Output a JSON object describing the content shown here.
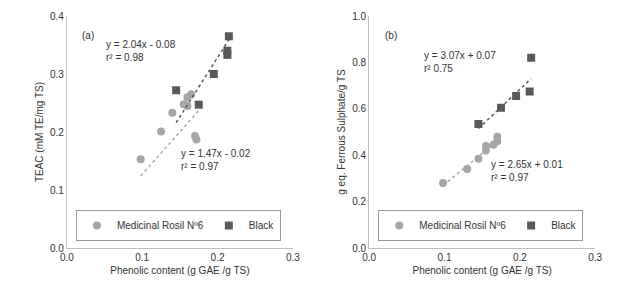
{
  "chart_data": [
    {
      "type": "scatter",
      "title": "(a)",
      "x_label": "Phenolic content (g GAE /g TS)",
      "y_label": "TEAC (mM TE/mg TS)",
      "xlim": [
        0,
        0.3
      ],
      "xticks": [
        {
          "value": 0,
          "label": "0.0"
        },
        0.1,
        0.2,
        0.3
      ],
      "ylim": [
        0,
        0.4
      ],
      "yticks": [
        {
          "value": 0,
          "label": "0.0"
        },
        0.1,
        0.2,
        0.3,
        0.4
      ],
      "grid": false,
      "legend": "bottom",
      "series": [
        {
          "name": "Medicinal Rosil Nº6",
          "color": "#a6a6a6",
          "marker": "circle",
          "x": [
            0.098,
            0.125,
            0.14,
            0.155,
            0.16,
            0.16,
            0.165,
            0.17,
            0.172
          ],
          "values": [
            0.153,
            0.201,
            0.233,
            0.248,
            0.26,
            0.245,
            0.265,
            0.193,
            0.187
          ],
          "trendline": {
            "line_style": "dotted",
            "x": [
              0.098,
              0.175
            ],
            "values": [
              0.124,
              0.237
            ]
          },
          "annotation": [
            "y = 1.47x - 0.02",
            "r² = 0.97"
          ]
        },
        {
          "name": "Black",
          "color": "#595959",
          "marker": "square",
          "x": [
            0.145,
            0.175,
            0.195,
            0.213,
            0.215,
            0.213
          ],
          "values": [
            0.272,
            0.247,
            0.3,
            0.333,
            0.365,
            0.34
          ],
          "trendline": {
            "line_style": "dotted",
            "x": [
              0.145,
              0.215
            ],
            "values": [
              0.216,
              0.359
            ]
          },
          "annotation": [
            "y = 2.04x - 0.08",
            "r² = 0.98"
          ]
        }
      ]
    },
    {
      "type": "scatter",
      "title": "(b)",
      "x_label": "Phenolic content (g GAE /g TS)",
      "y_label": "g eq. Ferrous Sulphate/g TS",
      "xlim": [
        0,
        0.3
      ],
      "xticks": [
        {
          "value": 0,
          "label": "0.0"
        },
        0.1,
        0.2,
        0.3
      ],
      "ylim": [
        0,
        1
      ],
      "yticks": [
        {
          "value": 0,
          "label": "0.0"
        },
        0.2,
        0.4,
        0.6,
        0.8,
        {
          "value": 1,
          "label": "1.0"
        }
      ],
      "grid": false,
      "legend": "bottom",
      "series": [
        {
          "name": "Medicinal Rosil Nº6",
          "color": "#a6a6a6",
          "marker": "circle",
          "x": [
            0.098,
            0.13,
            0.145,
            0.155,
            0.155,
            0.165,
            0.17,
            0.17
          ],
          "values": [
            0.28,
            0.34,
            0.385,
            0.44,
            0.42,
            0.445,
            0.46,
            0.48
          ],
          "trendline": {
            "line_style": "dotted",
            "x": [
              0.098,
              0.172
            ],
            "values": [
              0.27,
              0.466
            ]
          },
          "annotation": [
            "y = 2.65x + 0.01",
            "r² = 0.97"
          ]
        },
        {
          "name": "Black",
          "color": "#595959",
          "marker": "square",
          "x": [
            0.145,
            0.175,
            0.195,
            0.215,
            0.213
          ],
          "values": [
            0.535,
            0.605,
            0.655,
            0.82,
            0.675
          ],
          "trendline": {
            "line_style": "dotted",
            "x": [
              0.145,
              0.215
            ],
            "values": [
              0.515,
              0.73
            ]
          },
          "annotation": [
            "y = 3.07x + 0.07",
            "r² 0.75"
          ]
        }
      ]
    }
  ]
}
